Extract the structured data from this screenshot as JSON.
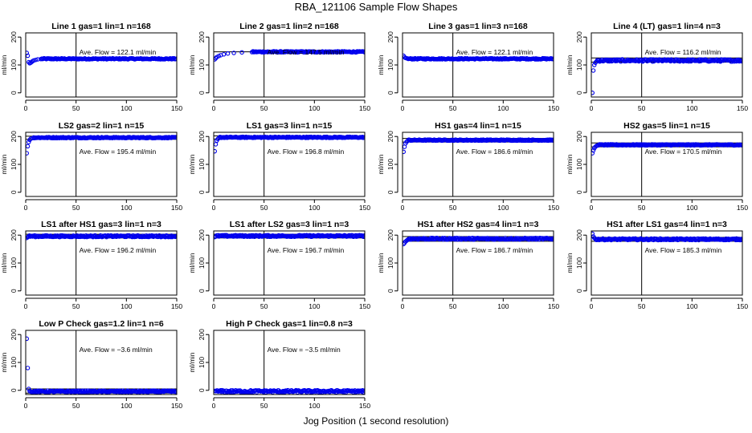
{
  "figure": {
    "title": "RBA_121106  Sample Flow Shapes",
    "xlabel": "Jog Position (1 second resolution)"
  },
  "chart_data": [
    {
      "type": "scatter",
      "title": "Line 1 gas=1 lin=1 n=168",
      "ylabel": "ml/min",
      "xlim": [
        0,
        150
      ],
      "ylim": [
        -15,
        215
      ],
      "xticks": [
        0,
        50,
        100,
        150
      ],
      "yticks": [
        0,
        100,
        200
      ],
      "vline": 50,
      "hlines": [],
      "annotation": "Ave. Flow =  122.1  ml/min",
      "early_points": [
        [
          1,
          143
        ],
        [
          2,
          133
        ],
        [
          3,
          110
        ],
        [
          4,
          106
        ],
        [
          5,
          108
        ],
        [
          6,
          111
        ],
        [
          7,
          114
        ],
        [
          8,
          116
        ],
        [
          10,
          118
        ],
        [
          12,
          120
        ],
        [
          15,
          121
        ]
      ],
      "plateau": 122,
      "noise": 2
    },
    {
      "type": "scatter",
      "title": "Line 2 gas=1 lin=2 n=168",
      "ylabel": "ml/min",
      "xlim": [
        0,
        150
      ],
      "ylim": [
        -15,
        215
      ],
      "xticks": [
        0,
        50,
        100,
        150
      ],
      "yticks": [
        0,
        100,
        200
      ],
      "vline": 50,
      "hlines": [
        147
      ],
      "annotation": "Ave. Flow =  147.5  ml/min",
      "early_points": [
        [
          1,
          120
        ],
        [
          2,
          124
        ],
        [
          3,
          128
        ],
        [
          5,
          132
        ],
        [
          7,
          135
        ],
        [
          10,
          138
        ],
        [
          14,
          141
        ],
        [
          20,
          143
        ],
        [
          28,
          145
        ],
        [
          38,
          146
        ]
      ],
      "plateau": 147,
      "noise": 2
    },
    {
      "type": "scatter",
      "title": "Line 3 gas=1 lin=3 n=168",
      "ylabel": "ml/min",
      "xlim": [
        0,
        150
      ],
      "ylim": [
        -15,
        215
      ],
      "xticks": [
        0,
        50,
        100,
        150
      ],
      "yticks": [
        0,
        100,
        200
      ],
      "vline": 50,
      "hlines": [],
      "annotation": "Ave. Flow =  122.1  ml/min",
      "early_points": [
        [
          1,
          133
        ],
        [
          2,
          128
        ],
        [
          3,
          125
        ],
        [
          4,
          124
        ]
      ],
      "plateau": 122,
      "noise": 2
    },
    {
      "type": "scatter",
      "title": "Line 4 (LT) gas=1 lin=4 n=3",
      "ylabel": "ml/min",
      "xlim": [
        0,
        150
      ],
      "ylim": [
        -15,
        215
      ],
      "xticks": [
        0,
        50,
        100,
        150
      ],
      "yticks": [
        0,
        100,
        200
      ],
      "vline": 50,
      "hlines": [
        110,
        125
      ],
      "annotation": "Ave. Flow =  116.2  ml/min",
      "early_points": [
        [
          1,
          0
        ],
        [
          2,
          80
        ],
        [
          3,
          100
        ],
        [
          4,
          108
        ],
        [
          5,
          112
        ]
      ],
      "plateau": 116,
      "noise": 4
    },
    {
      "type": "scatter",
      "title": "LS2 gas=2 lin=1 n=15",
      "ylabel": "ml/min",
      "xlim": [
        0,
        150
      ],
      "ylim": [
        -15,
        215
      ],
      "xticks": [
        0,
        50,
        100,
        150
      ],
      "yticks": [
        0,
        100,
        200
      ],
      "vline": 50,
      "hlines": [
        190,
        201
      ],
      "annotation": "Ave. Flow =  195.4  ml/min",
      "early_points": [
        [
          1,
          140
        ],
        [
          2,
          165
        ],
        [
          3,
          180
        ],
        [
          4,
          188
        ],
        [
          5,
          192
        ],
        [
          7,
          194
        ]
      ],
      "plateau": 196,
      "noise": 2
    },
    {
      "type": "scatter",
      "title": "LS1 gas=3 lin=1 n=15",
      "ylabel": "ml/min",
      "xlim": [
        0,
        150
      ],
      "ylim": [
        -15,
        215
      ],
      "xticks": [
        0,
        50,
        100,
        150
      ],
      "yticks": [
        0,
        100,
        200
      ],
      "vline": 50,
      "hlines": [
        191,
        202
      ],
      "annotation": "Ave. Flow =  196.8  ml/min",
      "early_points": [
        [
          1,
          147
        ],
        [
          2,
          172
        ],
        [
          3,
          185
        ],
        [
          4,
          191
        ],
        [
          5,
          194
        ]
      ],
      "plateau": 197,
      "noise": 2
    },
    {
      "type": "scatter",
      "title": "HS1 gas=4 lin=1 n=15",
      "ylabel": "ml/min",
      "xlim": [
        0,
        150
      ],
      "ylim": [
        -15,
        215
      ],
      "xticks": [
        0,
        50,
        100,
        150
      ],
      "yticks": [
        0,
        100,
        200
      ],
      "vline": 50,
      "hlines": [
        180,
        193
      ],
      "annotation": "Ave. Flow =  186.6  ml/min",
      "early_points": [
        [
          1,
          145
        ],
        [
          2,
          163
        ],
        [
          3,
          175
        ],
        [
          4,
          181
        ],
        [
          5,
          184
        ]
      ],
      "plateau": 187,
      "noise": 2
    },
    {
      "type": "scatter",
      "title": "HS2 gas=5 lin=1 n=15",
      "ylabel": "ml/min",
      "xlim": [
        0,
        150
      ],
      "ylim": [
        -15,
        215
      ],
      "xticks": [
        0,
        50,
        100,
        150
      ],
      "yticks": [
        0,
        100,
        200
      ],
      "vline": 50,
      "hlines": [
        163,
        177
      ],
      "annotation": "Ave. Flow =  170.5  ml/min",
      "early_points": [
        [
          1,
          140
        ],
        [
          2,
          150
        ],
        [
          3,
          158
        ],
        [
          4,
          163
        ],
        [
          5,
          166
        ],
        [
          6,
          168
        ]
      ],
      "plateau": 170,
      "noise": 2
    },
    {
      "type": "scatter",
      "title": "LS1 after HS1 gas=3 lin=1 n=3",
      "ylabel": "ml/min",
      "xlim": [
        0,
        150
      ],
      "ylim": [
        -15,
        215
      ],
      "xticks": [
        0,
        50,
        100,
        150
      ],
      "yticks": [
        0,
        100,
        200
      ],
      "vline": 50,
      "hlines": [
        190,
        203
      ],
      "annotation": "Ave. Flow =  196.2  ml/min",
      "early_points": [
        [
          1,
          190
        ],
        [
          2,
          193
        ]
      ],
      "plateau": 196,
      "noise": 3
    },
    {
      "type": "scatter",
      "title": "LS1 after LS2 gas=3 lin=1 n=3",
      "ylabel": "ml/min",
      "xlim": [
        0,
        150
      ],
      "ylim": [
        -15,
        215
      ],
      "xticks": [
        0,
        50,
        100,
        150
      ],
      "yticks": [
        0,
        100,
        200
      ],
      "vline": 50,
      "hlines": [
        190,
        203
      ],
      "annotation": "Ave. Flow =  196.7  ml/min",
      "early_points": [
        [
          1,
          193
        ],
        [
          2,
          195
        ]
      ],
      "plateau": 197,
      "noise": 3
    },
    {
      "type": "scatter",
      "title": "HS1 after HS2 gas=4 lin=1 n=3",
      "ylabel": "ml/min",
      "xlim": [
        0,
        150
      ],
      "ylim": [
        -15,
        215
      ],
      "xticks": [
        0,
        50,
        100,
        150
      ],
      "yticks": [
        0,
        100,
        200
      ],
      "vline": 50,
      "hlines": [
        178,
        195
      ],
      "annotation": "Ave. Flow =  186.7  ml/min",
      "early_points": [
        [
          1,
          168
        ],
        [
          2,
          172
        ],
        [
          3,
          177
        ],
        [
          4,
          180
        ],
        [
          5,
          183
        ]
      ],
      "plateau": 187,
      "noise": 3
    },
    {
      "type": "scatter",
      "title": "HS1 after LS1 gas=4 lin=1 n=3",
      "ylabel": "ml/min",
      "xlim": [
        0,
        150
      ],
      "ylim": [
        -15,
        215
      ],
      "xticks": [
        0,
        50,
        100,
        150
      ],
      "yticks": [
        0,
        100,
        200
      ],
      "vline": 50,
      "hlines": [
        178,
        192
      ],
      "annotation": "Ave. Flow =  185.3  ml/min",
      "early_points": [
        [
          1,
          205
        ],
        [
          2,
          195
        ],
        [
          3,
          190
        ]
      ],
      "plateau": 185,
      "noise": 3
    },
    {
      "type": "scatter",
      "title": "Low P Check gas=1.2 lin=1 n=6",
      "ylabel": "ml/min",
      "xlim": [
        0,
        150
      ],
      "ylim": [
        -15,
        215
      ],
      "xticks": [
        0,
        50,
        100,
        150
      ],
      "yticks": [
        0,
        100,
        200
      ],
      "vline": 50,
      "hlines": [
        -10,
        5
      ],
      "annotation": "Ave. Flow =  −3.6  ml/min",
      "early_points": [
        [
          1,
          185
        ],
        [
          2,
          80
        ],
        [
          3,
          5
        ],
        [
          4,
          -3
        ],
        [
          5,
          -5
        ]
      ],
      "plateau": -4,
      "noise": 3
    },
    {
      "type": "scatter",
      "title": "High P Check gas=1 lin=0.8 n=3",
      "ylabel": "ml/min",
      "xlim": [
        0,
        150
      ],
      "ylim": [
        -15,
        215
      ],
      "xticks": [
        0,
        50,
        100,
        150
      ],
      "yticks": [
        0,
        100,
        200
      ],
      "vline": 50,
      "hlines": [],
      "annotation": "Ave. Flow =  −3.5  ml/min",
      "early_points": [
        [
          1,
          -2
        ],
        [
          2,
          -3
        ]
      ],
      "plateau": -3.5,
      "noise": 4
    }
  ]
}
